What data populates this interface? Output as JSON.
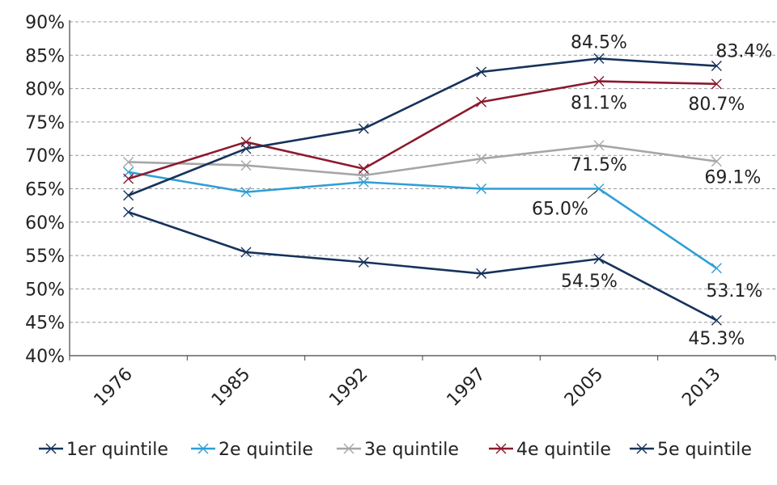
{
  "chart_data": {
    "type": "line",
    "title": "",
    "xlabel": "",
    "ylabel": "",
    "categories": [
      "1976",
      "1985",
      "1992",
      "1997",
      "2005",
      "2013"
    ],
    "ylim": [
      40,
      90
    ],
    "yticks": [
      "40%",
      "45%",
      "50%",
      "55%",
      "60%",
      "65%",
      "70%",
      "75%",
      "80%",
      "85%",
      "90%"
    ],
    "grid": true,
    "legend_position": "bottom",
    "series": [
      {
        "name": "1er quintile",
        "color": "#16325c",
        "values": [
          61.5,
          55.5,
          54.0,
          52.3,
          54.5,
          45.3
        ]
      },
      {
        "name": "2e quintile",
        "color": "#2e9fd6",
        "values": [
          67.5,
          64.5,
          66.0,
          65.0,
          65.0,
          53.1
        ]
      },
      {
        "name": "3e quintile",
        "color": "#a6a6a6",
        "values": [
          69.0,
          68.5,
          67.0,
          69.5,
          71.5,
          69.1
        ]
      },
      {
        "name": "4e quintile",
        "color": "#8b1a2e",
        "values": [
          66.5,
          72.0,
          68.0,
          78.0,
          81.1,
          80.7
        ]
      },
      {
        "name": "5e quintile",
        "color": "#16325c",
        "values": [
          64.0,
          71.0,
          74.0,
          82.5,
          84.5,
          83.4
        ]
      }
    ],
    "data_labels": [
      {
        "series": 4,
        "point": 4,
        "text": "84.5%"
      },
      {
        "series": 4,
        "point": 5,
        "text": "83.4%"
      },
      {
        "series": 3,
        "point": 4,
        "text": "81.1%"
      },
      {
        "series": 3,
        "point": 5,
        "text": "80.7%"
      },
      {
        "series": 2,
        "point": 4,
        "text": "71.5%"
      },
      {
        "series": 2,
        "point": 5,
        "text": "69.1%"
      },
      {
        "series": 1,
        "point": 4,
        "text": "65.0%"
      },
      {
        "series": 1,
        "point": 5,
        "text": "53.1%"
      },
      {
        "series": 0,
        "point": 4,
        "text": "54.5%"
      },
      {
        "series": 0,
        "point": 5,
        "text": "45.3%"
      }
    ]
  }
}
